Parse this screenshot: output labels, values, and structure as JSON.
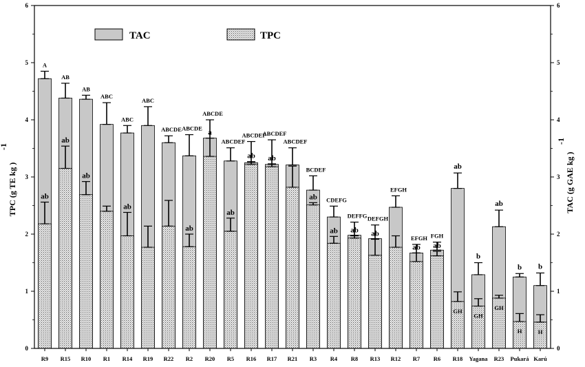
{
  "chart_data": {
    "type": "bar",
    "categories": [
      "R9",
      "R15",
      "R10",
      "R1",
      "R14",
      "R19",
      "R22",
      "R2",
      "R20",
      "R5",
      "R16",
      "R17",
      "R21",
      "R3",
      "R4",
      "R8",
      "R13",
      "R12",
      "R7",
      "R6",
      "R18",
      "Yagana",
      "R23",
      "Pukará",
      "Karú"
    ],
    "series": [
      {
        "name": "TAC",
        "values": [
          4.72,
          4.38,
          4.36,
          3.92,
          3.77,
          3.9,
          3.6,
          3.37,
          3.68,
          3.28,
          3.25,
          3.22,
          3.21,
          2.77,
          2.3,
          1.98,
          1.92,
          2.47,
          1.67,
          1.72,
          2.8,
          1.29,
          2.13,
          1.25,
          1.1
        ],
        "errors": [
          0.13,
          0.26,
          0.07,
          0.38,
          0.13,
          0.33,
          0.12,
          0.37,
          0.32,
          0.23,
          0.37,
          0.43,
          0.3,
          0.25,
          0.19,
          0.23,
          0.24,
          0.2,
          0.15,
          0.14,
          0.27,
          0.21,
          0.29,
          0.06,
          0.22
        ],
        "labels": [
          "A",
          "AB",
          "AB",
          "ABC",
          "ABC",
          "ABC",
          "ABCDE",
          "ABCDE",
          "ABCDE",
          "ABCDEF",
          "ABCDEF",
          "ABCDEF",
          "ABCDEF",
          "BCDEF",
          "CDEFG",
          "DEFFG",
          "DEFGH",
          "EFGH",
          "EFGH",
          "FGH",
          "ab",
          "b",
          "ab",
          "b",
          "b"
        ]
      },
      {
        "name": "TPC",
        "values": [
          2.18,
          3.15,
          2.69,
          2.4,
          1.97,
          1.77,
          2.14,
          1.78,
          3.36,
          2.05,
          3.22,
          3.18,
          2.82,
          2.51,
          1.84,
          1.93,
          1.63,
          1.77,
          1.52,
          1.62,
          0.82,
          0.74,
          0.88,
          0.47,
          0.46
        ],
        "errors": [
          0.38,
          0.39,
          0.23,
          0.09,
          0.41,
          0.37,
          0.45,
          0.22,
          0.32,
          0.23,
          0.05,
          0.05,
          0.37,
          0.04,
          0.12,
          0.04,
          0.28,
          0.2,
          0.15,
          0.08,
          0.17,
          0.13,
          0.05,
          0.14,
          0.13
        ],
        "labels": [
          "ab",
          "ab",
          "ab",
          "",
          "ab",
          "",
          "",
          "ab",
          "a",
          "ab",
          "ab",
          "ab",
          "",
          "ab",
          "ab",
          "ab",
          "ab",
          "",
          "ab",
          "ab",
          "GH",
          "GH",
          "GH",
          "H",
          "H"
        ]
      }
    ],
    "ylabel": "TPC (g TE kg",
    "ylabel_sup": "-1",
    "y2label": "TAC (g GAE kg",
    "y2label_sup": "-1",
    "ylim": [
      0,
      6
    ],
    "yticks": [
      "0",
      "1",
      "2",
      "3",
      "4",
      "5",
      "6"
    ],
    "legend_position": "top-left",
    "colors": {
      "tac_fill": "#c8c8c8",
      "tpc_fill": "#e8e8e8",
      "tpc_pattern": "#555555"
    }
  }
}
